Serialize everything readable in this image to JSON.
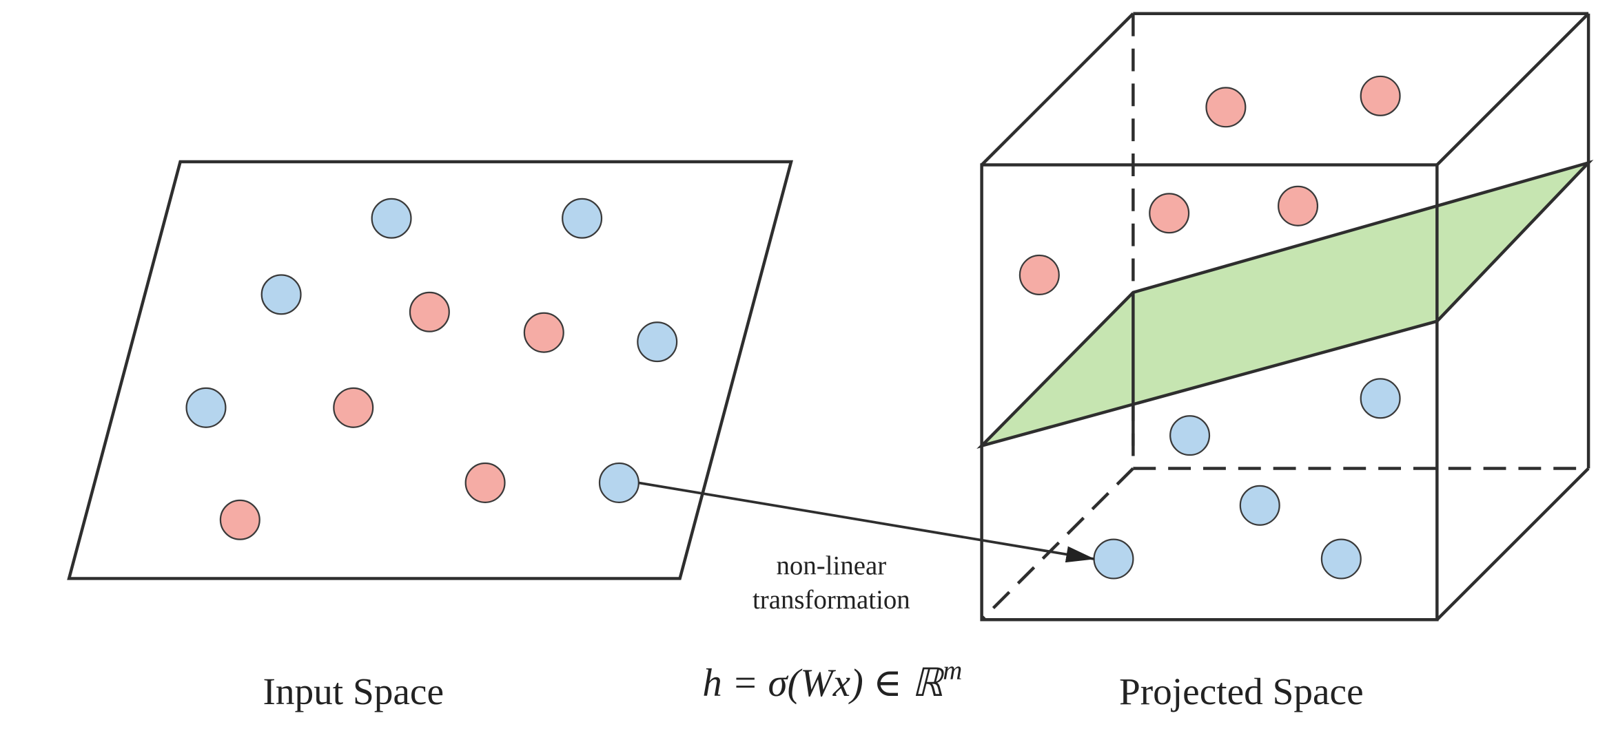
{
  "labels": {
    "input_space": "Input Space",
    "projected_space": "Projected Space"
  },
  "arrow_label": [
    "non-linear",
    "transformation"
  ],
  "formula": {
    "main": "h = σ(Wx) ∈ ℝ",
    "superscript": "m"
  }
}
